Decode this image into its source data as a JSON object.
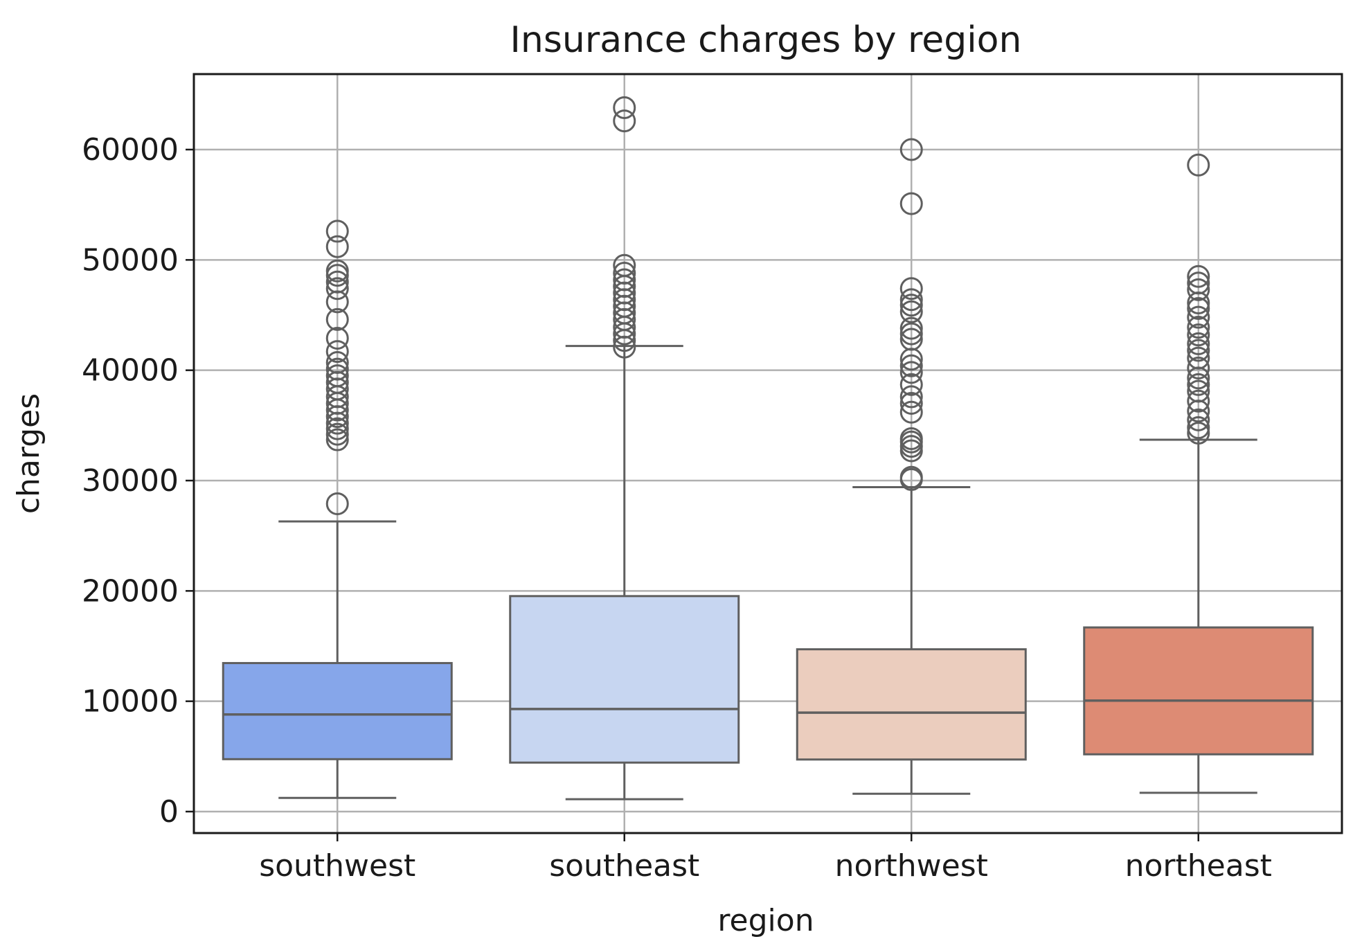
{
  "chart_data": {
    "type": "box",
    "title": "Insurance charges by region",
    "xlabel": "region",
    "ylabel": "charges",
    "ylim": [
      -2200,
      67000
    ],
    "yticks": [
      0,
      10000,
      20000,
      30000,
      40000,
      50000,
      60000
    ],
    "ytick_labels": [
      "0",
      "10000",
      "20000",
      "30000",
      "40000",
      "50000",
      "60000"
    ],
    "grid": true,
    "categories": [
      "southwest",
      "southeast",
      "northwest",
      "northeast"
    ],
    "boxes": [
      {
        "category": "southwest",
        "color": "#86a6ea",
        "whisker_low": 1240,
        "q1": 4750,
        "median": 8800,
        "q3": 13460,
        "whisker_high": 26300,
        "outliers": [
          27900,
          33700,
          34200,
          34700,
          35200,
          35800,
          36400,
          37000,
          37600,
          38300,
          38900,
          39500,
          40100,
          40700,
          41700,
          42900,
          44600,
          46200,
          47400,
          48000,
          48600,
          49000,
          51200,
          52600
        ]
      },
      {
        "category": "southeast",
        "color": "#c7d6f1",
        "whisker_low": 1120,
        "q1": 4440,
        "median": 9300,
        "q3": 19530,
        "whisker_high": 42200,
        "outliers": [
          42100,
          42700,
          43300,
          43900,
          44600,
          45200,
          45800,
          46400,
          47000,
          47600,
          48200,
          48800,
          49500,
          62600,
          63800
        ]
      },
      {
        "category": "northwest",
        "color": "#ebcdbe",
        "whisker_low": 1620,
        "q1": 4720,
        "median": 8970,
        "q3": 14710,
        "whisker_high": 29400,
        "outliers": [
          30100,
          30300,
          32700,
          33100,
          33500,
          33800,
          36200,
          37000,
          37600,
          38700,
          39800,
          40400,
          41000,
          42800,
          43300,
          43800,
          45300,
          45900,
          46400,
          47400,
          55100,
          60000
        ]
      },
      {
        "category": "northeast",
        "color": "#dd8b74",
        "whisker_low": 1700,
        "q1": 5190,
        "median": 10060,
        "q3": 16690,
        "whisker_high": 33700,
        "outliers": [
          34300,
          34800,
          35500,
          36300,
          37200,
          38100,
          38700,
          39300,
          40200,
          41100,
          41800,
          42400,
          43200,
          43900,
          44800,
          45600,
          46100,
          47300,
          47900,
          48500,
          58600
        ]
      }
    ]
  }
}
